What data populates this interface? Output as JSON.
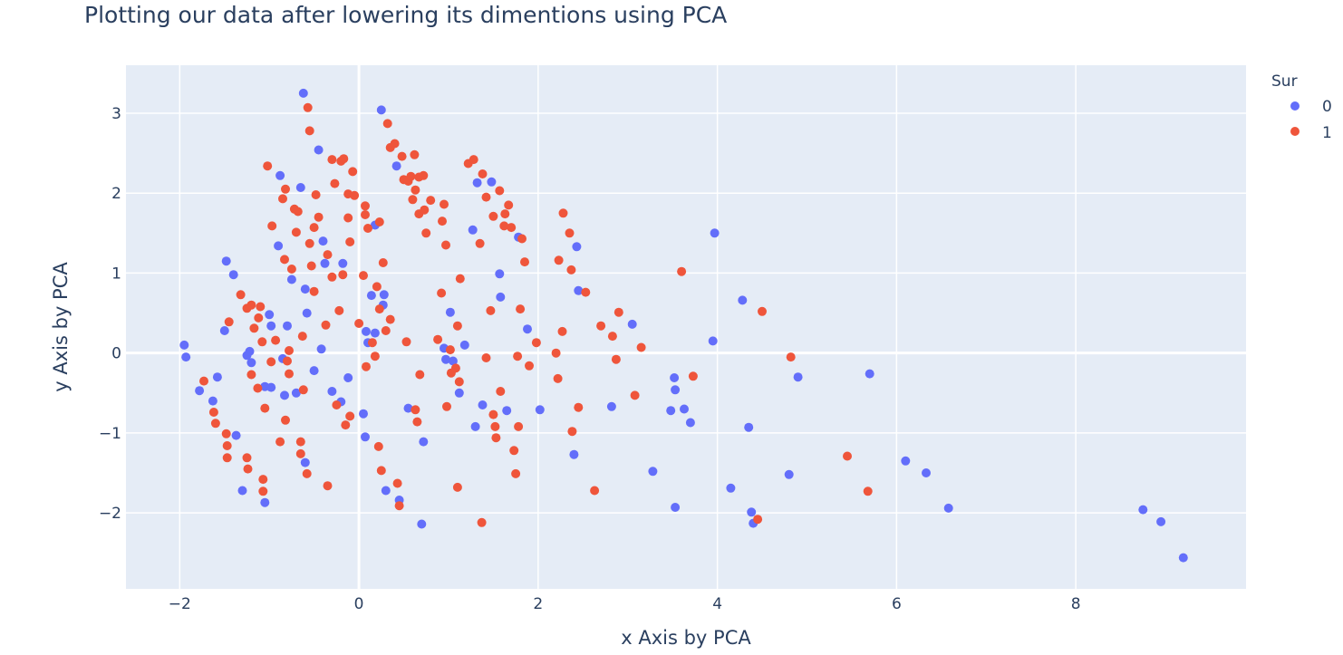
{
  "chart_data": {
    "type": "scatter",
    "title": "Plotting our data after lowering its dimentions using PCA",
    "xlabel": "x Axis by PCA",
    "ylabel": "y Axis by PCA",
    "xlim": [
      -2.6,
      9.9
    ],
    "ylim": [
      -2.95,
      3.6
    ],
    "x_ticks": [
      -2,
      0,
      2,
      4,
      6,
      8
    ],
    "y_ticks": [
      -2,
      -1,
      0,
      1,
      2,
      3
    ],
    "x_tick_labels": [
      "−2",
      "0",
      "2",
      "4",
      "6",
      "8"
    ],
    "y_tick_labels": [
      "−2",
      "−1",
      "0",
      "1",
      "2",
      "3"
    ],
    "grid": true,
    "legend_title": "Sur",
    "legend_position": "top-right",
    "series": [
      {
        "name": "0",
        "color": "#636efa",
        "points": [
          [
            -1.95,
            0.1
          ],
          [
            -1.93,
            -0.05
          ],
          [
            -1.78,
            -0.47
          ],
          [
            -1.63,
            -0.6
          ],
          [
            -1.58,
            -0.3
          ],
          [
            -1.5,
            0.28
          ],
          [
            -1.48,
            1.15
          ],
          [
            -1.4,
            0.98
          ],
          [
            -1.37,
            -1.03
          ],
          [
            -1.3,
            -1.72
          ],
          [
            -1.25,
            -0.03
          ],
          [
            -1.22,
            0.02
          ],
          [
            -1.2,
            -0.12
          ],
          [
            -1.05,
            -0.42
          ],
          [
            -1.05,
            -1.87
          ],
          [
            -1.0,
            0.48
          ],
          [
            -0.98,
            0.34
          ],
          [
            -0.98,
            -0.43
          ],
          [
            -0.9,
            1.34
          ],
          [
            -0.88,
            2.22
          ],
          [
            -0.85,
            -0.07
          ],
          [
            -0.83,
            -0.53
          ],
          [
            -0.8,
            0.34
          ],
          [
            -0.75,
            0.92
          ],
          [
            -0.7,
            -0.5
          ],
          [
            -0.65,
            2.07
          ],
          [
            -0.62,
            3.25
          ],
          [
            -0.6,
            0.8
          ],
          [
            -0.6,
            -1.37
          ],
          [
            -0.58,
            0.5
          ],
          [
            -0.5,
            -0.22
          ],
          [
            -0.45,
            2.54
          ],
          [
            -0.42,
            0.05
          ],
          [
            -0.4,
            1.4
          ],
          [
            -0.38,
            1.12
          ],
          [
            -0.3,
            -0.48
          ],
          [
            -0.2,
            -0.61
          ],
          [
            -0.18,
            1.12
          ],
          [
            -0.12,
            -0.31
          ],
          [
            0.05,
            -0.76
          ],
          [
            0.07,
            -1.05
          ],
          [
            0.08,
            0.27
          ],
          [
            0.1,
            0.13
          ],
          [
            0.14,
            0.72
          ],
          [
            0.18,
            0.25
          ],
          [
            0.18,
            1.6
          ],
          [
            0.25,
            3.04
          ],
          [
            0.27,
            0.6
          ],
          [
            0.28,
            0.73
          ],
          [
            0.3,
            -1.72
          ],
          [
            0.42,
            2.34
          ],
          [
            0.45,
            -1.84
          ],
          [
            0.55,
            -0.69
          ],
          [
            0.7,
            -2.14
          ],
          [
            0.72,
            -1.11
          ],
          [
            0.95,
            0.06
          ],
          [
            0.97,
            -0.08
          ],
          [
            1.02,
            0.51
          ],
          [
            1.05,
            -0.1
          ],
          [
            1.12,
            -0.5
          ],
          [
            1.18,
            0.1
          ],
          [
            1.27,
            1.54
          ],
          [
            1.3,
            -0.92
          ],
          [
            1.32,
            2.13
          ],
          [
            1.38,
            -0.65
          ],
          [
            1.48,
            2.14
          ],
          [
            1.57,
            0.99
          ],
          [
            1.58,
            0.7
          ],
          [
            1.65,
            -0.72
          ],
          [
            1.78,
            1.45
          ],
          [
            1.88,
            0.3
          ],
          [
            2.02,
            -0.71
          ],
          [
            2.4,
            -1.27
          ],
          [
            2.43,
            1.33
          ],
          [
            2.45,
            0.78
          ],
          [
            2.82,
            -0.67
          ],
          [
            3.05,
            0.36
          ],
          [
            3.28,
            -1.48
          ],
          [
            3.48,
            -0.72
          ],
          [
            3.52,
            -0.31
          ],
          [
            3.53,
            -0.46
          ],
          [
            3.53,
            -1.93
          ],
          [
            3.63,
            -0.7
          ],
          [
            3.7,
            -0.87
          ],
          [
            3.95,
            0.15
          ],
          [
            3.97,
            1.5
          ],
          [
            4.15,
            -1.69
          ],
          [
            4.28,
            0.66
          ],
          [
            4.35,
            -0.93
          ],
          [
            4.38,
            -1.99
          ],
          [
            4.4,
            -2.13
          ],
          [
            4.8,
            -1.52
          ],
          [
            4.9,
            -0.3
          ],
          [
            5.7,
            -0.26
          ],
          [
            6.1,
            -1.35
          ],
          [
            6.33,
            -1.5
          ],
          [
            6.58,
            -1.94
          ],
          [
            8.75,
            -1.96
          ],
          [
            8.95,
            -2.11
          ],
          [
            9.2,
            -2.56
          ]
        ]
      },
      {
        "name": "1",
        "color": "#ef553b",
        "points": [
          [
            -1.73,
            -0.35
          ],
          [
            -1.62,
            -0.74
          ],
          [
            -1.6,
            -0.88
          ],
          [
            -1.48,
            -1.01
          ],
          [
            -1.47,
            -1.16
          ],
          [
            -1.47,
            -1.31
          ],
          [
            -1.45,
            0.39
          ],
          [
            -1.32,
            0.73
          ],
          [
            -1.25,
            0.56
          ],
          [
            -1.25,
            -1.31
          ],
          [
            -1.24,
            -1.45
          ],
          [
            -1.2,
            0.6
          ],
          [
            -1.2,
            -0.27
          ],
          [
            -1.17,
            0.31
          ],
          [
            -1.13,
            -0.44
          ],
          [
            -1.12,
            0.44
          ],
          [
            -1.1,
            0.58
          ],
          [
            -1.08,
            0.14
          ],
          [
            -1.07,
            -1.58
          ],
          [
            -1.07,
            -1.73
          ],
          [
            -1.05,
            -0.69
          ],
          [
            -1.02,
            2.34
          ],
          [
            -0.98,
            -0.11
          ],
          [
            -0.97,
            1.59
          ],
          [
            -0.93,
            0.16
          ],
          [
            -0.88,
            -1.11
          ],
          [
            -0.85,
            1.93
          ],
          [
            -0.83,
            1.17
          ],
          [
            -0.82,
            2.05
          ],
          [
            -0.82,
            -0.84
          ],
          [
            -0.8,
            -0.1
          ],
          [
            -0.78,
            -0.26
          ],
          [
            -0.78,
            0.03
          ],
          [
            -0.75,
            1.05
          ],
          [
            -0.72,
            1.8
          ],
          [
            -0.7,
            1.51
          ],
          [
            -0.68,
            1.77
          ],
          [
            -0.65,
            -1.11
          ],
          [
            -0.65,
            -1.26
          ],
          [
            -0.63,
            0.21
          ],
          [
            -0.62,
            -0.46
          ],
          [
            -0.58,
            -1.51
          ],
          [
            -0.57,
            3.07
          ],
          [
            -0.55,
            1.37
          ],
          [
            -0.55,
            2.78
          ],
          [
            -0.53,
            1.09
          ],
          [
            -0.5,
            1.57
          ],
          [
            -0.5,
            0.77
          ],
          [
            -0.48,
            1.98
          ],
          [
            -0.45,
            1.7
          ],
          [
            -0.37,
            0.35
          ],
          [
            -0.35,
            1.23
          ],
          [
            -0.35,
            -1.66
          ],
          [
            -0.3,
            2.42
          ],
          [
            -0.3,
            0.95
          ],
          [
            -0.27,
            2.12
          ],
          [
            -0.25,
            -0.65
          ],
          [
            -0.22,
            0.53
          ],
          [
            -0.2,
            2.4
          ],
          [
            -0.18,
            0.98
          ],
          [
            -0.17,
            2.43
          ],
          [
            -0.15,
            -0.9
          ],
          [
            -0.12,
            1.99
          ],
          [
            -0.12,
            1.69
          ],
          [
            -0.1,
            1.39
          ],
          [
            -0.1,
            -0.79
          ],
          [
            -0.07,
            2.27
          ],
          [
            -0.05,
            1.97
          ],
          [
            0.0,
            0.37
          ],
          [
            0.05,
            0.97
          ],
          [
            0.07,
            1.84
          ],
          [
            0.07,
            1.73
          ],
          [
            0.08,
            -0.17
          ],
          [
            0.1,
            1.56
          ],
          [
            0.15,
            0.13
          ],
          [
            0.18,
            -0.04
          ],
          [
            0.2,
            0.83
          ],
          [
            0.22,
            -1.17
          ],
          [
            0.23,
            0.55
          ],
          [
            0.23,
            1.64
          ],
          [
            0.25,
            -1.47
          ],
          [
            0.27,
            1.13
          ],
          [
            0.3,
            0.28
          ],
          [
            0.32,
            2.87
          ],
          [
            0.35,
            0.42
          ],
          [
            0.35,
            2.57
          ],
          [
            0.4,
            2.62
          ],
          [
            0.43,
            -1.63
          ],
          [
            0.45,
            -1.91
          ],
          [
            0.48,
            2.46
          ],
          [
            0.5,
            2.17
          ],
          [
            0.53,
            0.14
          ],
          [
            0.55,
            2.15
          ],
          [
            0.58,
            2.21
          ],
          [
            0.6,
            1.92
          ],
          [
            0.62,
            2.48
          ],
          [
            0.63,
            2.04
          ],
          [
            0.63,
            -0.71
          ],
          [
            0.65,
            -0.86
          ],
          [
            0.67,
            2.2
          ],
          [
            0.67,
            1.74
          ],
          [
            0.68,
            -0.27
          ],
          [
            0.72,
            2.22
          ],
          [
            0.73,
            1.79
          ],
          [
            0.75,
            1.5
          ],
          [
            0.8,
            1.91
          ],
          [
            0.88,
            0.17
          ],
          [
            0.92,
            0.75
          ],
          [
            0.93,
            1.65
          ],
          [
            0.95,
            1.86
          ],
          [
            0.97,
            1.35
          ],
          [
            0.98,
            -0.67
          ],
          [
            1.02,
            0.04
          ],
          [
            1.03,
            -0.25
          ],
          [
            1.08,
            -0.19
          ],
          [
            1.1,
            0.34
          ],
          [
            1.1,
            -1.68
          ],
          [
            1.12,
            -0.36
          ],
          [
            1.13,
            0.93
          ],
          [
            1.22,
            2.37
          ],
          [
            1.28,
            2.42
          ],
          [
            1.35,
            1.37
          ],
          [
            1.37,
            -2.12
          ],
          [
            1.38,
            2.24
          ],
          [
            1.42,
            1.95
          ],
          [
            1.42,
            -0.06
          ],
          [
            1.47,
            0.53
          ],
          [
            1.5,
            -0.77
          ],
          [
            1.5,
            1.71
          ],
          [
            1.52,
            -0.92
          ],
          [
            1.53,
            -1.06
          ],
          [
            1.57,
            2.03
          ],
          [
            1.58,
            -0.48
          ],
          [
            1.62,
            1.59
          ],
          [
            1.63,
            1.74
          ],
          [
            1.67,
            1.85
          ],
          [
            1.7,
            1.57
          ],
          [
            1.73,
            -1.22
          ],
          [
            1.75,
            -1.51
          ],
          [
            1.77,
            -0.04
          ],
          [
            1.78,
            -0.92
          ],
          [
            1.8,
            0.55
          ],
          [
            1.82,
            1.43
          ],
          [
            1.85,
            1.14
          ],
          [
            1.9,
            -0.16
          ],
          [
            1.98,
            0.13
          ],
          [
            2.2,
            0.0
          ],
          [
            2.22,
            -0.32
          ],
          [
            2.23,
            1.16
          ],
          [
            2.27,
            0.27
          ],
          [
            2.28,
            1.75
          ],
          [
            2.35,
            1.5
          ],
          [
            2.37,
            1.04
          ],
          [
            2.38,
            -0.98
          ],
          [
            2.45,
            -0.68
          ],
          [
            2.53,
            0.76
          ],
          [
            2.63,
            -1.72
          ],
          [
            2.7,
            0.34
          ],
          [
            2.83,
            0.21
          ],
          [
            2.87,
            -0.08
          ],
          [
            2.9,
            0.51
          ],
          [
            3.08,
            -0.53
          ],
          [
            3.15,
            0.07
          ],
          [
            3.6,
            1.02
          ],
          [
            3.73,
            -0.29
          ],
          [
            4.45,
            -2.08
          ],
          [
            4.5,
            0.52
          ],
          [
            4.82,
            -0.05
          ],
          [
            5.45,
            -1.29
          ],
          [
            5.68,
            -1.73
          ]
        ]
      }
    ]
  }
}
